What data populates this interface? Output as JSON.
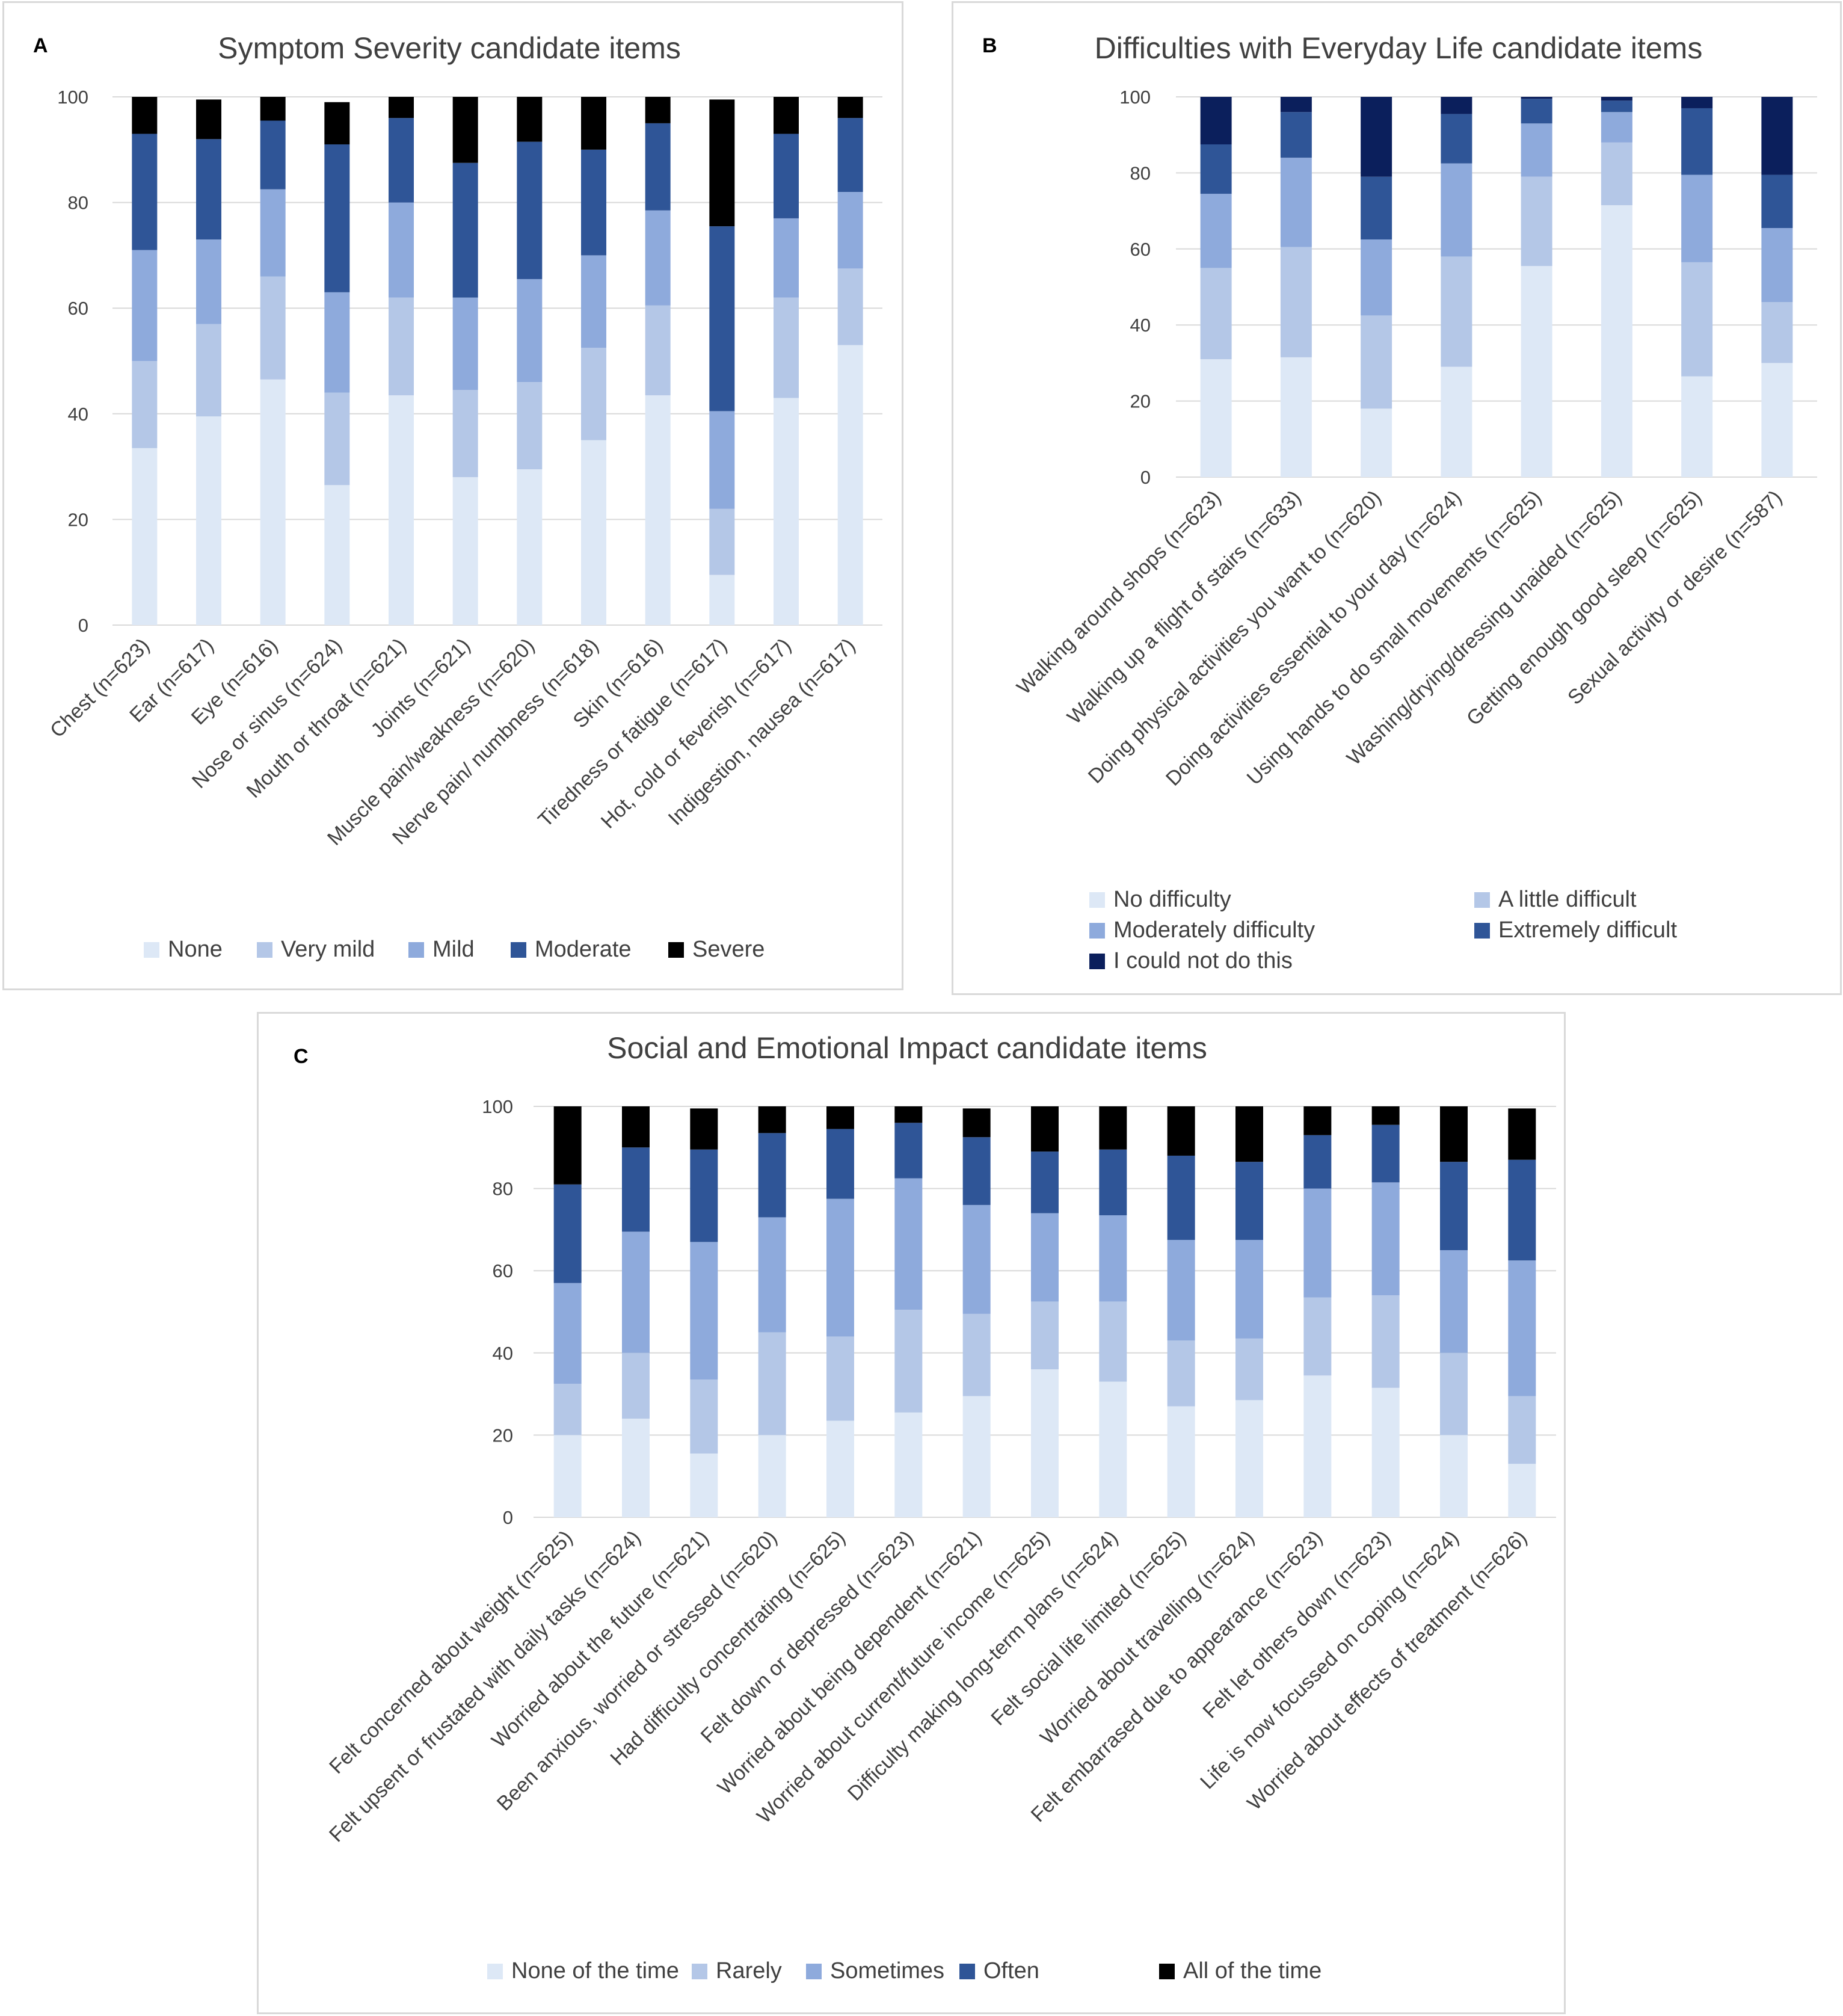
{
  "colors": {
    "scale5": [
      "#dde8f6",
      "#b4c7e7",
      "#8eaadc",
      "#2f5597",
      "#000000"
    ],
    "scaleB": [
      "#dde8f6",
      "#b4c7e7",
      "#8eaadc",
      "#2f5597",
      "#0b1f5c"
    ],
    "grid": "#d9d9d9",
    "text": "#404040",
    "title": "#404040"
  },
  "chart_data": [
    {
      "id": "a",
      "panel_letter": "A",
      "type": "bar",
      "stacked": true,
      "title": "Symptom Severity candidate items",
      "ylim": [
        0,
        100
      ],
      "yticks": [
        0,
        20,
        40,
        60,
        80,
        100
      ],
      "grid": true,
      "legend_position": "bottom",
      "categories": [
        "Chest (n=623)",
        "Ear (n=617)",
        "Eye (n=616)",
        "Nose or sinus (n=624)",
        "Mouth or throat (n=621)",
        "Joints (n=621)",
        "Muscle pain/weakness (n=620)",
        "Nerve pain/ numbness (n=618)",
        "Skin (n=616)",
        "Tiredness or fatigue (n=617)",
        "Hot, cold or feverish (n=617)",
        "Indigestion, nausea (n=617)"
      ],
      "series": [
        {
          "name": "None",
          "values": [
            33.5,
            39.5,
            46.5,
            26.5,
            43.5,
            28,
            29.5,
            35,
            43.5,
            9.5,
            43,
            53
          ]
        },
        {
          "name": "Very mild",
          "values": [
            16.5,
            17.5,
            19.5,
            17.5,
            18.5,
            16.5,
            16.5,
            17.5,
            17,
            12.5,
            19,
            14.5
          ]
        },
        {
          "name": "Mild",
          "values": [
            21,
            16,
            16.5,
            19,
            18,
            17.5,
            19.5,
            17.5,
            18,
            18.5,
            15,
            14.5
          ]
        },
        {
          "name": "Moderate",
          "values": [
            22,
            19,
            13,
            28,
            16,
            25.5,
            26,
            20,
            16.5,
            35,
            16,
            14
          ]
        },
        {
          "name": "Severe",
          "values": [
            7,
            7.5,
            4.5,
            8,
            4,
            12.5,
            8.5,
            10,
            5,
            24,
            7,
            4
          ]
        }
      ]
    },
    {
      "id": "b",
      "panel_letter": "B",
      "type": "bar",
      "stacked": true,
      "title": "Difficulties with Everyday Life candidate items",
      "ylim": [
        0,
        100
      ],
      "yticks": [
        0,
        20,
        40,
        60,
        80,
        100
      ],
      "grid": true,
      "legend_position": "bottom",
      "categories": [
        "Walking around shops (n=623)",
        "Walking up a flight of stairs (n=633)",
        "Doing physical activities you want to (n=620)",
        "Doing activities essential to your day (n=624)",
        "Using hands to do small movements (n=625)",
        "Washing/drying/dressing unaided (n=625)",
        "Getting enough good sleep (n=625)",
        "Sexual activity or desire (n=587)"
      ],
      "series": [
        {
          "name": "No difficulty",
          "values": [
            31,
            31.5,
            18,
            29,
            55.5,
            71.5,
            26.5,
            30
          ]
        },
        {
          "name": "A little difficult",
          "values": [
            24,
            29,
            24.5,
            29,
            23.5,
            16.5,
            30,
            16
          ]
        },
        {
          "name": "Moderately difficulty",
          "values": [
            19.5,
            23.5,
            20,
            24.5,
            14,
            8,
            23,
            19.5
          ]
        },
        {
          "name": "Extremely difficult",
          "values": [
            13,
            12,
            16.5,
            13,
            6.5,
            3,
            17.5,
            14
          ]
        },
        {
          "name": "I could not do this",
          "values": [
            12.5,
            4,
            21,
            4.5,
            0.5,
            1,
            3,
            20.5
          ]
        }
      ]
    },
    {
      "id": "c",
      "panel_letter": "C",
      "type": "bar",
      "stacked": true,
      "title": "Social and Emotional Impact candidate items",
      "ylim": [
        0,
        100
      ],
      "yticks": [
        0,
        20,
        40,
        60,
        80,
        100
      ],
      "grid": true,
      "legend_position": "bottom",
      "categories": [
        "Felt concerned about weight (n=625)",
        "Felt upsent or frustated with daily tasks (n=624)",
        "Worried about the future (n=621)",
        "Been anxious, worried or stressed (n=620)",
        "Had difficulty concentrating (n=625)",
        "Felt down or depressed (n=623)",
        "Worried about being dependent (n=621)",
        "Worried about current/future income (n=625)",
        "Difficulty making long-term plans (n=624)",
        "Felt social life limited (n=625)",
        "Worried about travelling (n=624)",
        "Felt embarrased due to appearance (n=623)",
        "Felt let others down (n=623)",
        "Life is now focussed on coping (n=624)",
        "Worried about effects of treatment (n=626)"
      ],
      "series": [
        {
          "name": "None of the time",
          "values": [
            20,
            24,
            15.5,
            20,
            23.5,
            25.5,
            29.5,
            36,
            33,
            27,
            28.5,
            34.5,
            31.5,
            20,
            13
          ]
        },
        {
          "name": "Rarely",
          "values": [
            12.5,
            16,
            18,
            25,
            20.5,
            25,
            20,
            16.5,
            19.5,
            16,
            15,
            19,
            22.5,
            20,
            16.5
          ]
        },
        {
          "name": "Sometimes",
          "values": [
            24.5,
            29.5,
            33.5,
            28,
            33.5,
            32,
            26.5,
            21.5,
            21,
            24.5,
            24,
            26.5,
            27.5,
            25,
            33
          ]
        },
        {
          "name": "Often",
          "values": [
            24,
            20.5,
            22.5,
            20.5,
            17,
            13.5,
            16.5,
            15,
            16,
            20.5,
            19,
            13,
            14,
            21.5,
            24.5
          ]
        },
        {
          "name": "All of the time",
          "values": [
            19,
            10,
            10,
            6.5,
            5.5,
            4,
            7,
            11,
            10.5,
            12,
            13.5,
            7,
            4.5,
            13.5,
            12.5
          ]
        }
      ]
    }
  ]
}
